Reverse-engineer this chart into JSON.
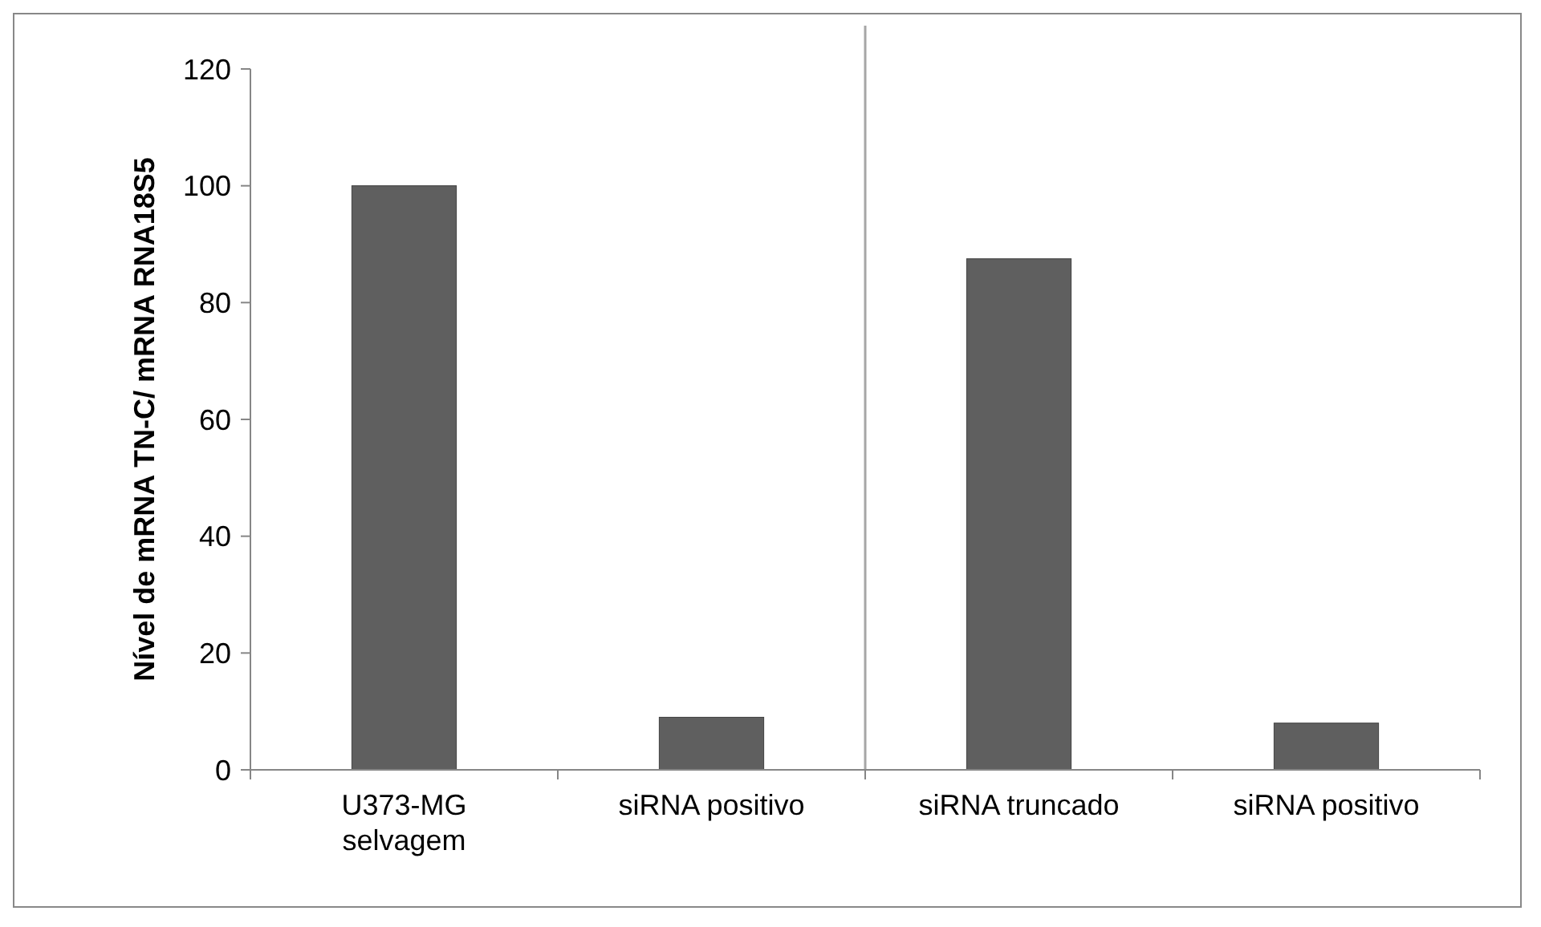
{
  "chart_data": {
    "type": "bar",
    "ylabel": "Nível de mRNA TN-C/ mRNA RNA18S5",
    "categories": [
      "U373-MG selvagem",
      "siRNA positivo",
      "siRNA truncado",
      "siRNA positivo"
    ],
    "values": [
      100,
      9,
      87.5,
      8
    ],
    "color": "#5f5f5f",
    "ylim": [
      0,
      120
    ],
    "yticks": [
      0,
      20,
      40,
      60,
      80,
      100,
      120
    ],
    "grid": false
  }
}
